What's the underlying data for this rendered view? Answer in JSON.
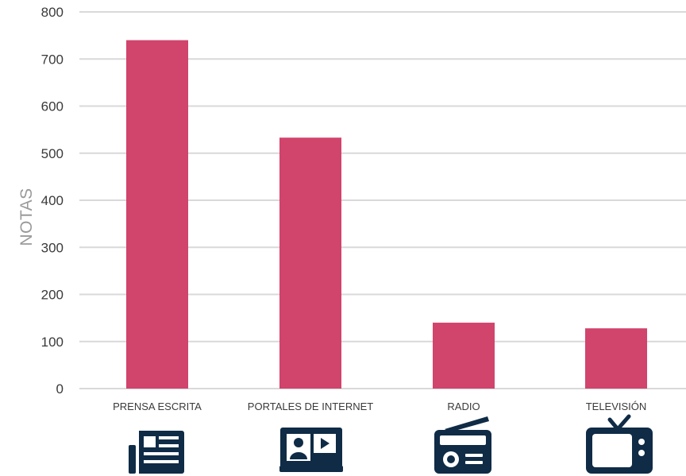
{
  "chart_data": {
    "type": "bar",
    "title": "",
    "xlabel": "",
    "ylabel": "NOTAS",
    "ylim": [
      0,
      800
    ],
    "yticks": [
      0,
      100,
      200,
      300,
      400,
      500,
      600,
      700,
      800
    ],
    "grid": true,
    "legend": "none",
    "categories": [
      "PRENSA ESCRITA",
      "PORTALES DE INTERNET",
      "RADIO",
      "TELEVISIÓN"
    ],
    "values": [
      740,
      533,
      140,
      128
    ],
    "bar_color": "#d1446c",
    "icons": [
      "newspaper-icon",
      "web-portal-icon",
      "radio-icon",
      "television-icon"
    ],
    "icon_color": "#0f2b46"
  }
}
